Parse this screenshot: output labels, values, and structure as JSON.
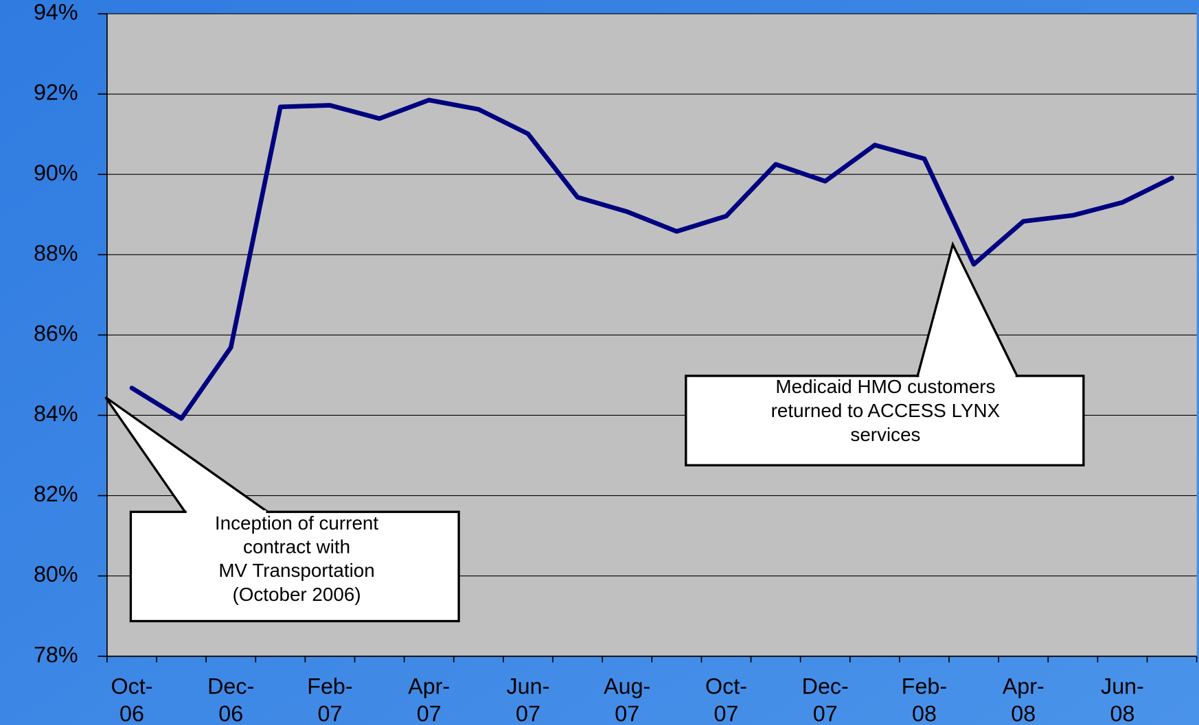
{
  "chart_data": {
    "type": "line",
    "categories": [
      "Oct-06",
      null,
      "Dec-06",
      null,
      "Feb-07",
      null,
      "Apr-07",
      null,
      "Jun-07",
      null,
      "Aug-07",
      null,
      "Oct-07",
      null,
      "Dec-07",
      null,
      "Feb-08",
      null,
      "Apr-08",
      null,
      "Jun-08",
      null
    ],
    "series": [
      {
        "name": null,
        "color": "#000080",
        "values": [
          84.68,
          83.92,
          85.69,
          91.68,
          91.72,
          91.39,
          91.85,
          91.62,
          91.01,
          89.43,
          89.07,
          88.58,
          88.96,
          90.25,
          89.83,
          90.73,
          90.39,
          87.76,
          88.83,
          88.98,
          89.3,
          89.91
        ]
      }
    ],
    "ylim": [
      78,
      94
    ],
    "yticks": [
      {
        "value": 78,
        "label": "78%"
      },
      {
        "value": 80,
        "label": "80%"
      },
      {
        "value": 82,
        "label": "82%"
      },
      {
        "value": 84,
        "label": "84%"
      },
      {
        "value": 86,
        "label": "86%"
      },
      {
        "value": 88,
        "label": "88%"
      },
      {
        "value": 90,
        "label": "90%"
      },
      {
        "value": 92,
        "label": "92%"
      },
      {
        "value": 94,
        "label": "94%"
      }
    ],
    "grid": true,
    "annotations": [
      {
        "text": "Inception of current\ncontract with\nMV Transportation\n(October 2006)"
      },
      {
        "text": "Medicaid HMO customers\nreturned to ACCESS LYNX\nservices"
      }
    ]
  }
}
